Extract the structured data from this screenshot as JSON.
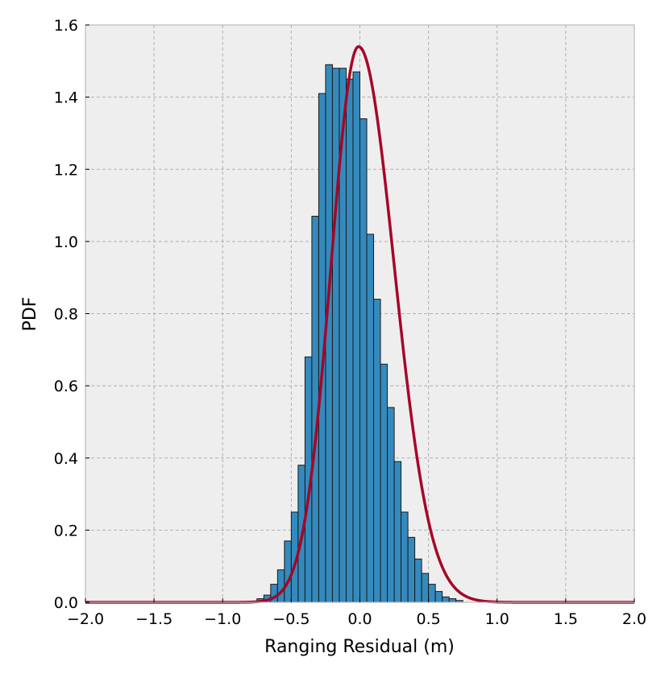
{
  "chart_data": {
    "type": "bar",
    "xlabel": "Ranging Residual (m)",
    "ylabel": "PDF",
    "xlim": [
      -2.0,
      2.0
    ],
    "ylim": [
      0.0,
      1.6
    ],
    "xticks": [
      "−2.0",
      "−1.5",
      "−1.0",
      "−0.5",
      "0.0",
      "0.5",
      "1.0",
      "1.5",
      "2.0"
    ],
    "yticks": [
      "0.0",
      "0.2",
      "0.4",
      "0.6",
      "0.8",
      "1.0",
      "1.2",
      "1.4",
      "1.6"
    ],
    "grid": true,
    "histogram": {
      "bin_start": -0.75,
      "bin_width": 0.05,
      "values": [
        0.01,
        0.02,
        0.05,
        0.09,
        0.17,
        0.25,
        0.38,
        0.68,
        1.07,
        1.41,
        1.49,
        1.48,
        1.48,
        1.45,
        1.47,
        1.34,
        1.02,
        0.84,
        0.66,
        0.54,
        0.39,
        0.25,
        0.18,
        0.12,
        0.08,
        0.05,
        0.03,
        0.015,
        0.01,
        0.005
      ]
    },
    "fit_curve": {
      "type": "skew-normal",
      "peak_x": -0.01,
      "peak_y": 1.54,
      "left_sigma": 0.2,
      "right_sigma": 0.26
    },
    "colors": {
      "bars": "#348abd",
      "curve": "#a60628",
      "background": "#eeeeee"
    }
  }
}
